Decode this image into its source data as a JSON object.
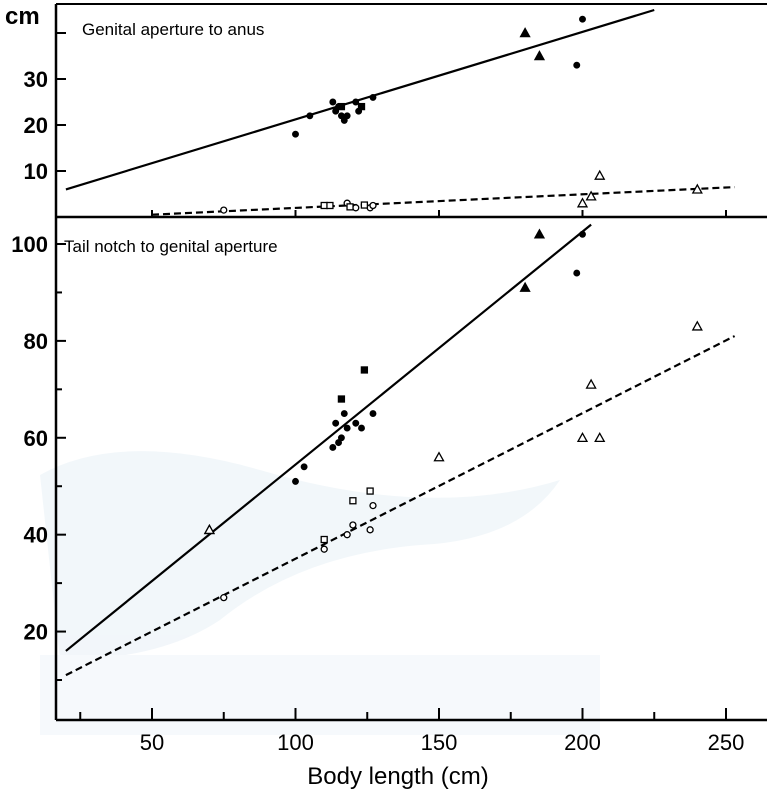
{
  "chart_data": [
    {
      "type": "scatter",
      "title": "Genital aperture to anus",
      "ylabel": "cm",
      "xlabel": "Body length (cm)",
      "xlim": [
        20,
        260
      ],
      "ylim": [
        0,
        44
      ],
      "y_ticks": [
        "10",
        "20",
        "30"
      ],
      "y_ticks_values": [
        10,
        20,
        30
      ],
      "grid": false,
      "series": [
        {
          "marker": "filled-circle",
          "points": [
            [
              100,
              18
            ],
            [
              105,
              22
            ],
            [
              113,
              25
            ],
            [
              114,
              23
            ],
            [
              115,
              24
            ],
            [
              116,
              22
            ],
            [
              117,
              21
            ],
            [
              118,
              22
            ],
            [
              121,
              25
            ],
            [
              122,
              23
            ],
            [
              127,
              26
            ],
            [
              198,
              33
            ],
            [
              200,
              43
            ]
          ]
        },
        {
          "marker": "filled-square",
          "points": [
            [
              116,
              24
            ],
            [
              123,
              24
            ]
          ]
        },
        {
          "marker": "filled-triangle",
          "points": [
            [
              180,
              40
            ],
            [
              185,
              35
            ]
          ]
        },
        {
          "marker": "open-circle",
          "points": [
            [
              75,
              1.5
            ],
            [
              118,
              3
            ],
            [
              121,
              2
            ],
            [
              126,
              2
            ],
            [
              127,
              2.5
            ]
          ]
        },
        {
          "marker": "open-square",
          "points": [
            [
              110,
              2.5
            ],
            [
              112,
              2.5
            ],
            [
              119,
              2.2
            ],
            [
              124,
              2.6
            ]
          ]
        },
        {
          "marker": "open-triangle",
          "points": [
            [
              200,
              3
            ],
            [
              203,
              4.5
            ],
            [
              206,
              9
            ],
            [
              240,
              6
            ]
          ]
        }
      ],
      "lines": [
        {
          "style": "solid",
          "points": [
            [
              20,
              6
            ],
            [
              225,
              45
            ]
          ]
        },
        {
          "style": "dashed",
          "points": [
            [
              50,
              0.5
            ],
            [
              253,
              6.5
            ]
          ]
        }
      ]
    },
    {
      "type": "scatter",
      "title": "Tail notch to genital aperture",
      "xlabel": "Body length (cm)",
      "xlim": [
        20,
        260
      ],
      "ylim": [
        0,
        105
      ],
      "x_ticks": [
        "50",
        "100",
        "150",
        "200",
        "250"
      ],
      "x_ticks_values": [
        50,
        100,
        150,
        200,
        250
      ],
      "y_ticks": [
        "20",
        "40",
        "60",
        "80",
        "100"
      ],
      "y_ticks_values": [
        20,
        40,
        60,
        80,
        100
      ],
      "grid": false,
      "series": [
        {
          "marker": "filled-circle",
          "points": [
            [
              100,
              51
            ],
            [
              103,
              54
            ],
            [
              113,
              58
            ],
            [
              114,
              63
            ],
            [
              115,
              59
            ],
            [
              116,
              60
            ],
            [
              117,
              65
            ],
            [
              118,
              62
            ],
            [
              121,
              63
            ],
            [
              123,
              62
            ],
            [
              127,
              65
            ],
            [
              198,
              94
            ],
            [
              200,
              102
            ]
          ]
        },
        {
          "marker": "filled-square",
          "points": [
            [
              116,
              68
            ],
            [
              124,
              74
            ]
          ]
        },
        {
          "marker": "filled-triangle",
          "points": [
            [
              70,
              41
            ],
            [
              180,
              91
            ],
            [
              185,
              102
            ]
          ]
        },
        {
          "marker": "open-circle",
          "points": [
            [
              75,
              27
            ],
            [
              110,
              37
            ],
            [
              118,
              40
            ],
            [
              120,
              42
            ],
            [
              126,
              41
            ],
            [
              127,
              46
            ]
          ]
        },
        {
          "marker": "open-square",
          "points": [
            [
              110,
              39
            ],
            [
              120,
              47
            ],
            [
              126,
              49
            ]
          ]
        },
        {
          "marker": "open-triangle",
          "points": [
            [
              70,
              41
            ],
            [
              150,
              56
            ],
            [
              200,
              60
            ],
            [
              203,
              71
            ],
            [
              206,
              60
            ],
            [
              240,
              83
            ]
          ]
        }
      ],
      "lines": [
        {
          "style": "solid",
          "points": [
            [
              20,
              16
            ],
            [
              203,
              104
            ]
          ]
        },
        {
          "style": "dashed",
          "points": [
            [
              20,
              11
            ],
            [
              253,
              81
            ]
          ]
        }
      ]
    }
  ]
}
